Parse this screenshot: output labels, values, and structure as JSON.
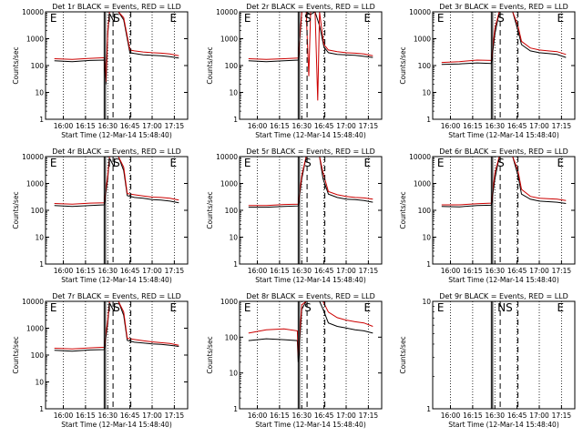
{
  "chart_data": [
    {
      "type": "line",
      "title": "Det 1r BLACK = Events, RED = LLD",
      "ylabel": "Counts/sec",
      "xlabel": "Start Time (12-Mar-14 15:48:40)",
      "x_ticks": [
        "16:00",
        "16:15",
        "16:30",
        "16:45",
        "17:00",
        "17:15"
      ],
      "y_ticks": [
        "1",
        "10",
        "100",
        "1000",
        "10000"
      ],
      "markers": [
        "E",
        "N",
        "S",
        "E"
      ],
      "y_scale": "log",
      "ylim": [
        1,
        10000
      ],
      "series": [
        {
          "color": "#000000",
          "x": [
            15.9,
            16.1,
            16.3,
            16.46,
            16.48,
            16.5,
            16.52,
            16.56,
            16.62,
            16.68,
            16.75,
            16.8,
            16.9,
            17.0,
            17.1,
            17.2,
            17.3
          ],
          "y": [
            150,
            140,
            155,
            160,
            20,
            1500,
            10000,
            10000,
            10000,
            5000,
            300,
            280,
            250,
            240,
            230,
            215,
            190
          ]
        },
        {
          "color": "#cc0000",
          "x": [
            15.9,
            16.1,
            16.3,
            16.46,
            16.48,
            16.5,
            16.52,
            16.56,
            16.62,
            16.68,
            16.75,
            16.8,
            16.9,
            17.0,
            17.1,
            17.2,
            17.3
          ],
          "y": [
            180,
            170,
            185,
            195,
            25,
            2000,
            10000,
            10000,
            10000,
            6000,
            380,
            350,
            320,
            300,
            290,
            270,
            230
          ]
        }
      ]
    },
    {
      "type": "line",
      "title": "Det 2r BLACK = Events, RED = LLD",
      "ylabel": "Counts/sec",
      "xlabel": "Start Time (12-Mar-14 15:48:40)",
      "x_ticks": [
        "16:00",
        "16:15",
        "16:30",
        "16:45",
        "17:00",
        "17:15"
      ],
      "y_ticks": [
        "1",
        "10",
        "100",
        "1000",
        "10000"
      ],
      "markers": [
        "E",
        "S",
        "E"
      ],
      "y_scale": "log",
      "ylim": [
        1,
        10000
      ],
      "series": [
        {
          "color": "#000000",
          "x": [
            15.9,
            16.1,
            16.3,
            16.46,
            16.5,
            16.55,
            16.6,
            16.65,
            16.7,
            16.75,
            16.8,
            16.9,
            17.0,
            17.1,
            17.2,
            17.3
          ],
          "y": [
            150,
            140,
            150,
            160,
            10000,
            10000,
            8000,
            10000,
            3000,
            500,
            300,
            260,
            250,
            240,
            220,
            200
          ]
        },
        {
          "color": "#cc0000",
          "x": [
            15.9,
            16.1,
            16.3,
            16.46,
            16.5,
            16.55,
            16.58,
            16.6,
            16.65,
            16.68,
            16.7,
            16.72,
            16.75,
            16.8,
            16.9,
            17.0,
            17.1,
            17.2,
            17.3
          ],
          "y": [
            180,
            170,
            180,
            190,
            10000,
            10000,
            40,
            10000,
            10000,
            5,
            10000,
            3000,
            600,
            380,
            330,
            300,
            290,
            270,
            230
          ]
        }
      ]
    },
    {
      "type": "line",
      "title": "Det 3r BLACK = Events, RED = LLD",
      "ylabel": "Counts/sec",
      "xlabel": "Start Time (12-Mar-14 15:48:40)",
      "x_ticks": [
        "16:00",
        "16:15",
        "16:30",
        "16:45",
        "17:00",
        "17:15"
      ],
      "y_ticks": [
        "1",
        "10",
        "100",
        "1000",
        "10000"
      ],
      "markers": [
        "E",
        "S",
        "E"
      ],
      "y_scale": "log",
      "ylim": [
        1,
        10000
      ],
      "series": [
        {
          "color": "#000000",
          "x": [
            15.9,
            16.1,
            16.3,
            16.46,
            16.5,
            16.55,
            16.62,
            16.7,
            16.76,
            16.8,
            16.9,
            17.0,
            17.1,
            17.2,
            17.3
          ],
          "y": [
            110,
            115,
            125,
            120,
            1500,
            10000,
            10000,
            10000,
            2000,
            600,
            350,
            300,
            280,
            260,
            200
          ]
        },
        {
          "color": "#cc0000",
          "x": [
            15.9,
            16.1,
            16.3,
            16.46,
            16.5,
            16.55,
            16.62,
            16.7,
            16.76,
            16.8,
            16.9,
            17.0,
            17.1,
            17.2,
            17.3
          ],
          "y": [
            130,
            140,
            160,
            155,
            2500,
            10000,
            10000,
            10000,
            3000,
            800,
            450,
            380,
            350,
            330,
            260
          ]
        }
      ]
    },
    {
      "type": "line",
      "title": "Det 4r BLACK = Events, RED = LLD",
      "ylabel": "Counts/sec",
      "xlabel": "Start Time (12-Mar-14 15:48:40)",
      "x_ticks": [
        "16:00",
        "16:15",
        "16:30",
        "16:45",
        "17:00",
        "17:15"
      ],
      "y_ticks": [
        "1",
        "10",
        "100",
        "1000",
        "10000"
      ],
      "markers": [
        "E",
        "N",
        "S",
        "E"
      ],
      "y_scale": "log",
      "ylim": [
        1,
        10000
      ],
      "series": [
        {
          "color": "#000000",
          "x": [
            15.9,
            16.1,
            16.3,
            16.46,
            16.5,
            16.52,
            16.56,
            16.62,
            16.68,
            16.72,
            16.8,
            16.9,
            17.0,
            17.1,
            17.2,
            17.3
          ],
          "y": [
            150,
            140,
            150,
            160,
            1500,
            10000,
            10000,
            10000,
            3000,
            350,
            300,
            280,
            250,
            240,
            220,
            190
          ]
        },
        {
          "color": "#cc0000",
          "x": [
            15.9,
            16.1,
            16.3,
            16.46,
            16.5,
            16.52,
            16.56,
            16.62,
            16.68,
            16.72,
            16.8,
            16.9,
            17.0,
            17.1,
            17.2,
            17.3
          ],
          "y": [
            180,
            170,
            185,
            190,
            2000,
            10000,
            10000,
            10000,
            4000,
            420,
            380,
            340,
            310,
            300,
            280,
            240
          ]
        }
      ]
    },
    {
      "type": "line",
      "title": "Det 5r BLACK = Events, RED = LLD",
      "ylabel": "Counts/sec",
      "xlabel": "Start Time (12-Mar-14 15:48:40)",
      "x_ticks": [
        "16:00",
        "16:15",
        "16:30",
        "16:45",
        "17:00",
        "17:15"
      ],
      "y_ticks": [
        "1",
        "10",
        "100",
        "1000",
        "10000"
      ],
      "markers": [
        "E",
        "S",
        "E"
      ],
      "y_scale": "log",
      "ylim": [
        1,
        10000
      ],
      "series": [
        {
          "color": "#000000",
          "x": [
            15.9,
            16.1,
            16.3,
            16.46,
            16.5,
            16.55,
            16.62,
            16.7,
            16.74,
            16.8,
            16.9,
            17.0,
            17.1,
            17.2,
            17.3
          ],
          "y": [
            130,
            130,
            140,
            145,
            1500,
            10000,
            10000,
            10000,
            1500,
            400,
            300,
            260,
            250,
            230,
            200
          ]
        },
        {
          "color": "#cc0000",
          "x": [
            15.9,
            16.1,
            16.3,
            16.46,
            16.5,
            16.55,
            16.62,
            16.7,
            16.74,
            16.8,
            16.9,
            17.0,
            17.1,
            17.2,
            17.3
          ],
          "y": [
            150,
            150,
            165,
            170,
            2000,
            10000,
            10000,
            10000,
            2500,
            500,
            380,
            330,
            300,
            290,
            260
          ]
        }
      ]
    },
    {
      "type": "line",
      "title": "Det 6r BLACK = Events, RED = LLD",
      "ylabel": "Counts/sec",
      "xlabel": "Start Time (12-Mar-14 15:48:40)",
      "x_ticks": [
        "16:00",
        "16:15",
        "16:30",
        "16:45",
        "17:00",
        "17:15"
      ],
      "y_ticks": [
        "1",
        "10",
        "100",
        "1000",
        "10000"
      ],
      "markers": [
        "E",
        "S",
        "E"
      ],
      "y_scale": "log",
      "ylim": [
        1,
        10000
      ],
      "series": [
        {
          "color": "#000000",
          "x": [
            15.9,
            16.1,
            16.3,
            16.46,
            16.5,
            16.55,
            16.62,
            16.7,
            16.76,
            16.8,
            16.9,
            17.0,
            17.1,
            17.2,
            17.3
          ],
          "y": [
            140,
            135,
            150,
            155,
            1500,
            10000,
            10000,
            10000,
            2000,
            400,
            260,
            220,
            210,
            200,
            180
          ]
        },
        {
          "color": "#cc0000",
          "x": [
            15.9,
            16.1,
            16.3,
            16.46,
            16.5,
            16.55,
            16.62,
            16.7,
            16.76,
            16.8,
            16.9,
            17.0,
            17.1,
            17.2,
            17.3
          ],
          "y": [
            160,
            160,
            175,
            185,
            2500,
            10000,
            10000,
            10000,
            3000,
            600,
            330,
            280,
            270,
            260,
            230
          ]
        }
      ]
    },
    {
      "type": "line",
      "title": "Det 7r BLACK = Events, RED = LLD",
      "ylabel": "Counts/sec",
      "xlabel": "Start Time (12-Mar-14 15:48:40)",
      "x_ticks": [
        "16:00",
        "16:15",
        "16:30",
        "16:45",
        "17:00",
        "17:15"
      ],
      "y_ticks": [
        "1",
        "10",
        "100",
        "1000",
        "10000"
      ],
      "markers": [
        "E",
        "N",
        "S",
        "E"
      ],
      "y_scale": "log",
      "ylim": [
        1,
        10000
      ],
      "series": [
        {
          "color": "#000000",
          "x": [
            15.9,
            16.1,
            16.3,
            16.46,
            16.5,
            16.52,
            16.56,
            16.62,
            16.68,
            16.72,
            16.8,
            16.9,
            17.0,
            17.1,
            17.2,
            17.3
          ],
          "y": [
            150,
            140,
            155,
            160,
            1500,
            10000,
            10000,
            10000,
            3000,
            350,
            300,
            280,
            260,
            250,
            230,
            210
          ]
        },
        {
          "color": "#cc0000",
          "x": [
            15.9,
            16.1,
            16.3,
            16.46,
            16.5,
            16.52,
            16.56,
            16.62,
            16.68,
            16.72,
            16.8,
            16.9,
            17.0,
            17.1,
            17.2,
            17.3
          ],
          "y": [
            180,
            170,
            185,
            195,
            2000,
            10000,
            10000,
            10000,
            4000,
            420,
            380,
            340,
            310,
            290,
            270,
            230
          ]
        }
      ]
    },
    {
      "type": "line",
      "title": "Det 8r BLACK = Events, RED = LLD",
      "ylabel": "Counts/sec",
      "xlabel": "Start Time (12-Mar-14 15:48:40)",
      "x_ticks": [
        "16:00",
        "16:15",
        "16:30",
        "16:45",
        "17:00",
        "17:15"
      ],
      "y_ticks": [
        "1",
        "10",
        "100",
        "1000"
      ],
      "markers": [
        "E",
        "S",
        "E"
      ],
      "y_scale": "log",
      "ylim": [
        1,
        1000
      ],
      "series": [
        {
          "color": "#000000",
          "x": [
            15.9,
            16.1,
            16.3,
            16.45,
            16.46,
            16.5,
            16.55,
            16.62,
            16.7,
            16.74,
            16.8,
            16.9,
            17.0,
            17.1,
            17.2,
            17.3
          ],
          "y": [
            80,
            90,
            85,
            80,
            20,
            600,
            1000,
            1000,
            1000,
            600,
            250,
            200,
            180,
            160,
            150,
            130
          ]
        },
        {
          "color": "#cc0000",
          "x": [
            15.9,
            16.1,
            16.3,
            16.45,
            16.46,
            16.5,
            16.55,
            16.62,
            16.7,
            16.74,
            16.8,
            16.9,
            17.0,
            17.1,
            17.2,
            17.3
          ],
          "y": [
            130,
            160,
            170,
            150,
            30,
            800,
            1000,
            1000,
            1000,
            1000,
            500,
            350,
            300,
            270,
            250,
            200
          ]
        }
      ]
    },
    {
      "type": "line",
      "title": "Det 9r BLACK = Events, RED = LLD",
      "ylabel": "Counts/sec",
      "xlabel": "Start Time (12-Mar-14 15:48:40)",
      "x_ticks": [
        "16:00",
        "16:15",
        "16:30",
        "16:45",
        "17:00",
        "17:15"
      ],
      "y_ticks": [
        "1",
        "10"
      ],
      "markers": [
        "E",
        "NS",
        "E"
      ],
      "y_scale": "log",
      "ylim": [
        1,
        10
      ],
      "series": []
    }
  ]
}
